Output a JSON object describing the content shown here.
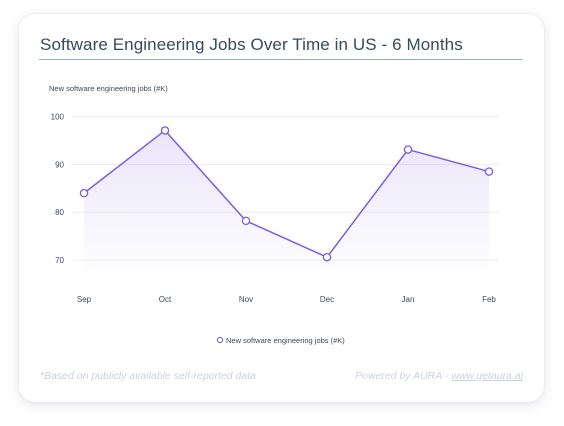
{
  "title": "Software Engineering Jobs Over Time in US - 6 Months",
  "footer": {
    "note": "*Based on publicly available self-reported data",
    "credit_prefix": "Powered by AURA - ",
    "credit_link": "www.getaura.ai"
  },
  "colors": {
    "line": "#7c5ce6",
    "title_rule": "#8fb4be",
    "footer_text": "#c9d2dd"
  },
  "chart_data": {
    "type": "line",
    "title": "Software Engineering Jobs Over Time in US - 6 Months",
    "ylabel": "New software engineering jobs (#K)",
    "xlabel": "",
    "categories": [
      "Sep",
      "Oct",
      "Nov",
      "Dec",
      "Jan",
      "Feb"
    ],
    "series": [
      {
        "name": "New software engineering jobs (#K)",
        "values": [
          84,
          97.1,
          78.2,
          70.6,
          93.1,
          88.5
        ]
      }
    ],
    "yticks": [
      70,
      80,
      90,
      100
    ],
    "ylim": [
      65,
      102
    ],
    "grid": true,
    "legend": "bottom-center"
  }
}
